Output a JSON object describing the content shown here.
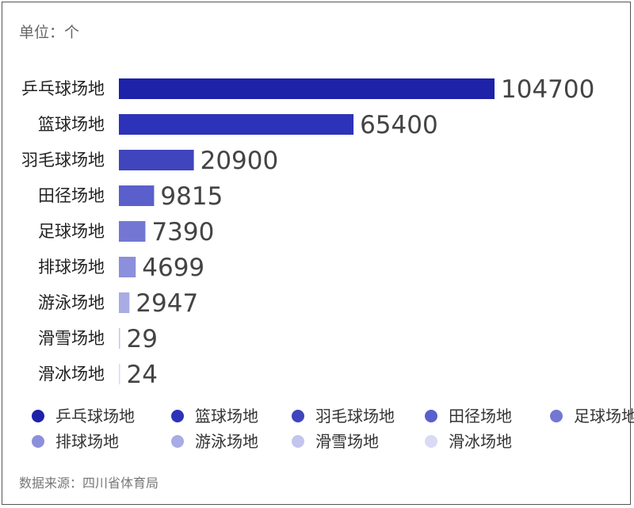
{
  "unit_label": "单位：个",
  "source_label": "数据来源：四川省体育局",
  "chart_data": {
    "type": "bar",
    "orientation": "horizontal",
    "categories": [
      "乒乓球场地",
      "篮球场地",
      "羽毛球场地",
      "田径场地",
      "足球场地",
      "排球场地",
      "游泳场地",
      "滑雪场地",
      "滑冰场地"
    ],
    "values": [
      104700,
      65400,
      20900,
      9815,
      7390,
      4699,
      2947,
      29,
      24
    ],
    "value_labels": [
      "104700",
      "65400",
      "20900",
      "9815",
      "7390",
      "4699",
      "2947",
      "29",
      "24"
    ],
    "colors": [
      "#1d22a8",
      "#2d33b8",
      "#4045bd",
      "#5a5fcc",
      "#7377d3",
      "#8c8fdb",
      "#a9abe4",
      "#c3c5ee",
      "#d9daf4"
    ],
    "xlim": [
      0,
      104700
    ],
    "grid": false,
    "legend": {
      "position": "bottom",
      "entries": [
        "乒乓球场地",
        "篮球场地",
        "羽毛球场地",
        "田径场地",
        "足球场地",
        "排球场地",
        "游泳场地",
        "滑雪场地",
        "滑冰场地"
      ]
    }
  }
}
